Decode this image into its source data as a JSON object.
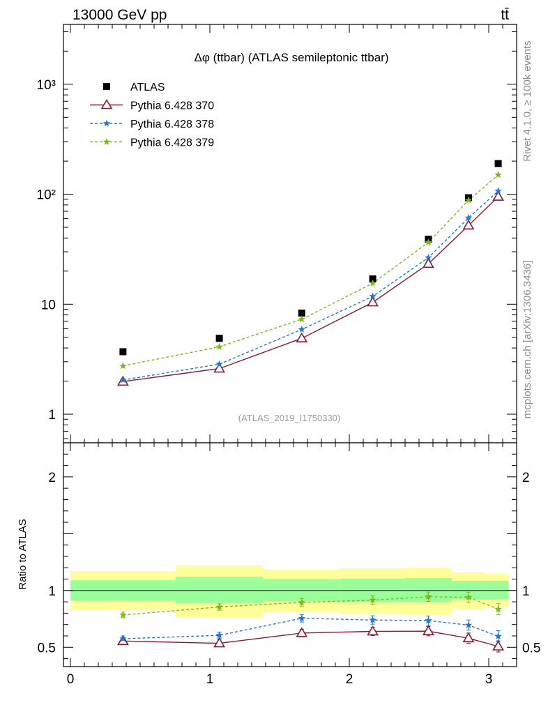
{
  "header": {
    "energy_label": "13000 GeV pp",
    "process_label": "tt̄",
    "side_label_top": "Rivet 4.1.0, ≥ 100k events",
    "side_label_bottom": "mcplots.cern.ch [arXiv:1306.3436]"
  },
  "colors": {
    "data": "#000000",
    "pythia370": "#8b1a2e",
    "pythia378": "#1f77d4",
    "pythia379": "#7cba1c",
    "band_inner": "#99ff99",
    "band_outer": "#ffff99"
  },
  "chart_data": {
    "type": "line",
    "title": "Δφ (ttbar) (ATLAS semileptonic ttbar)",
    "watermark": "(ATLAS_2019_I1750330)",
    "xlabel": "",
    "ylabel_ratio": "Ratio to ATLAS",
    "xlim": [
      -0.05,
      3.2
    ],
    "main_ylim": [
      0.55,
      3500
    ],
    "main_yscale": "log",
    "main_yticks": [
      {
        "value": 1,
        "label": "1"
      },
      {
        "value": 10,
        "label": "10"
      },
      {
        "value": 100,
        "label": "10²"
      },
      {
        "value": 1000,
        "label": "10³"
      }
    ],
    "ratio_ylim": [
      0.33,
      2.3
    ],
    "ratio_yticks": [
      {
        "value": 0.5,
        "label": "0.5"
      },
      {
        "value": 1,
        "label": "1"
      },
      {
        "value": 2,
        "label": "2"
      }
    ],
    "xticks": [
      {
        "value": 0,
        "label": "0"
      },
      {
        "value": 1,
        "label": "1"
      },
      {
        "value": 2,
        "label": "2"
      },
      {
        "value": 3,
        "label": "3"
      }
    ],
    "x": [
      0.377,
      1.068,
      1.659,
      2.168,
      2.567,
      2.855,
      3.068
    ],
    "bin_edges": [
      0.0,
      0.754,
      1.382,
      1.936,
      2.4,
      2.734,
      2.976,
      3.142
    ],
    "series": [
      {
        "name": "ATLAS",
        "key": "data",
        "marker": "square",
        "style": "none",
        "values": [
          3.7,
          4.9,
          8.3,
          17,
          39,
          93,
          190
        ]
      },
      {
        "name": "Pythia 6.428 370",
        "key": "pythia370",
        "marker": "triangle",
        "style": "solid",
        "values": [
          1.98,
          2.6,
          4.9,
          10.4,
          23.3,
          52,
          95
        ],
        "ratio": [
          0.555,
          0.535,
          0.625,
          0.64,
          0.642,
          0.58,
          0.508
        ]
      },
      {
        "name": "Pythia 6.428 378",
        "key": "pythia378",
        "marker": "star",
        "style": "dashed",
        "values": [
          2.05,
          2.85,
          5.9,
          11.8,
          26.5,
          61,
          107
        ],
        "ratio": [
          0.575,
          0.605,
          0.755,
          0.74,
          0.735,
          0.695,
          0.597
        ]
      },
      {
        "name": "Pythia 6.428 379",
        "key": "pythia379",
        "marker": "star",
        "style": "dashed",
        "values": [
          2.75,
          4.1,
          7.3,
          15.5,
          36.5,
          88,
          150
        ],
        "ratio": [
          0.785,
          0.855,
          0.895,
          0.915,
          0.945,
          0.94,
          0.835
        ]
      }
    ],
    "band_inner": {
      "lower": [
        0.91,
        0.89,
        0.905,
        0.9,
        0.9,
        0.925,
        0.925
      ],
      "upper": [
        1.09,
        1.12,
        1.1,
        1.105,
        1.11,
        1.085,
        1.085
      ]
    },
    "band_outer": {
      "lower": [
        0.83,
        0.765,
        0.81,
        0.795,
        0.785,
        0.84,
        0.855
      ],
      "upper": [
        1.17,
        1.22,
        1.185,
        1.195,
        1.2,
        1.16,
        1.15
      ]
    }
  }
}
